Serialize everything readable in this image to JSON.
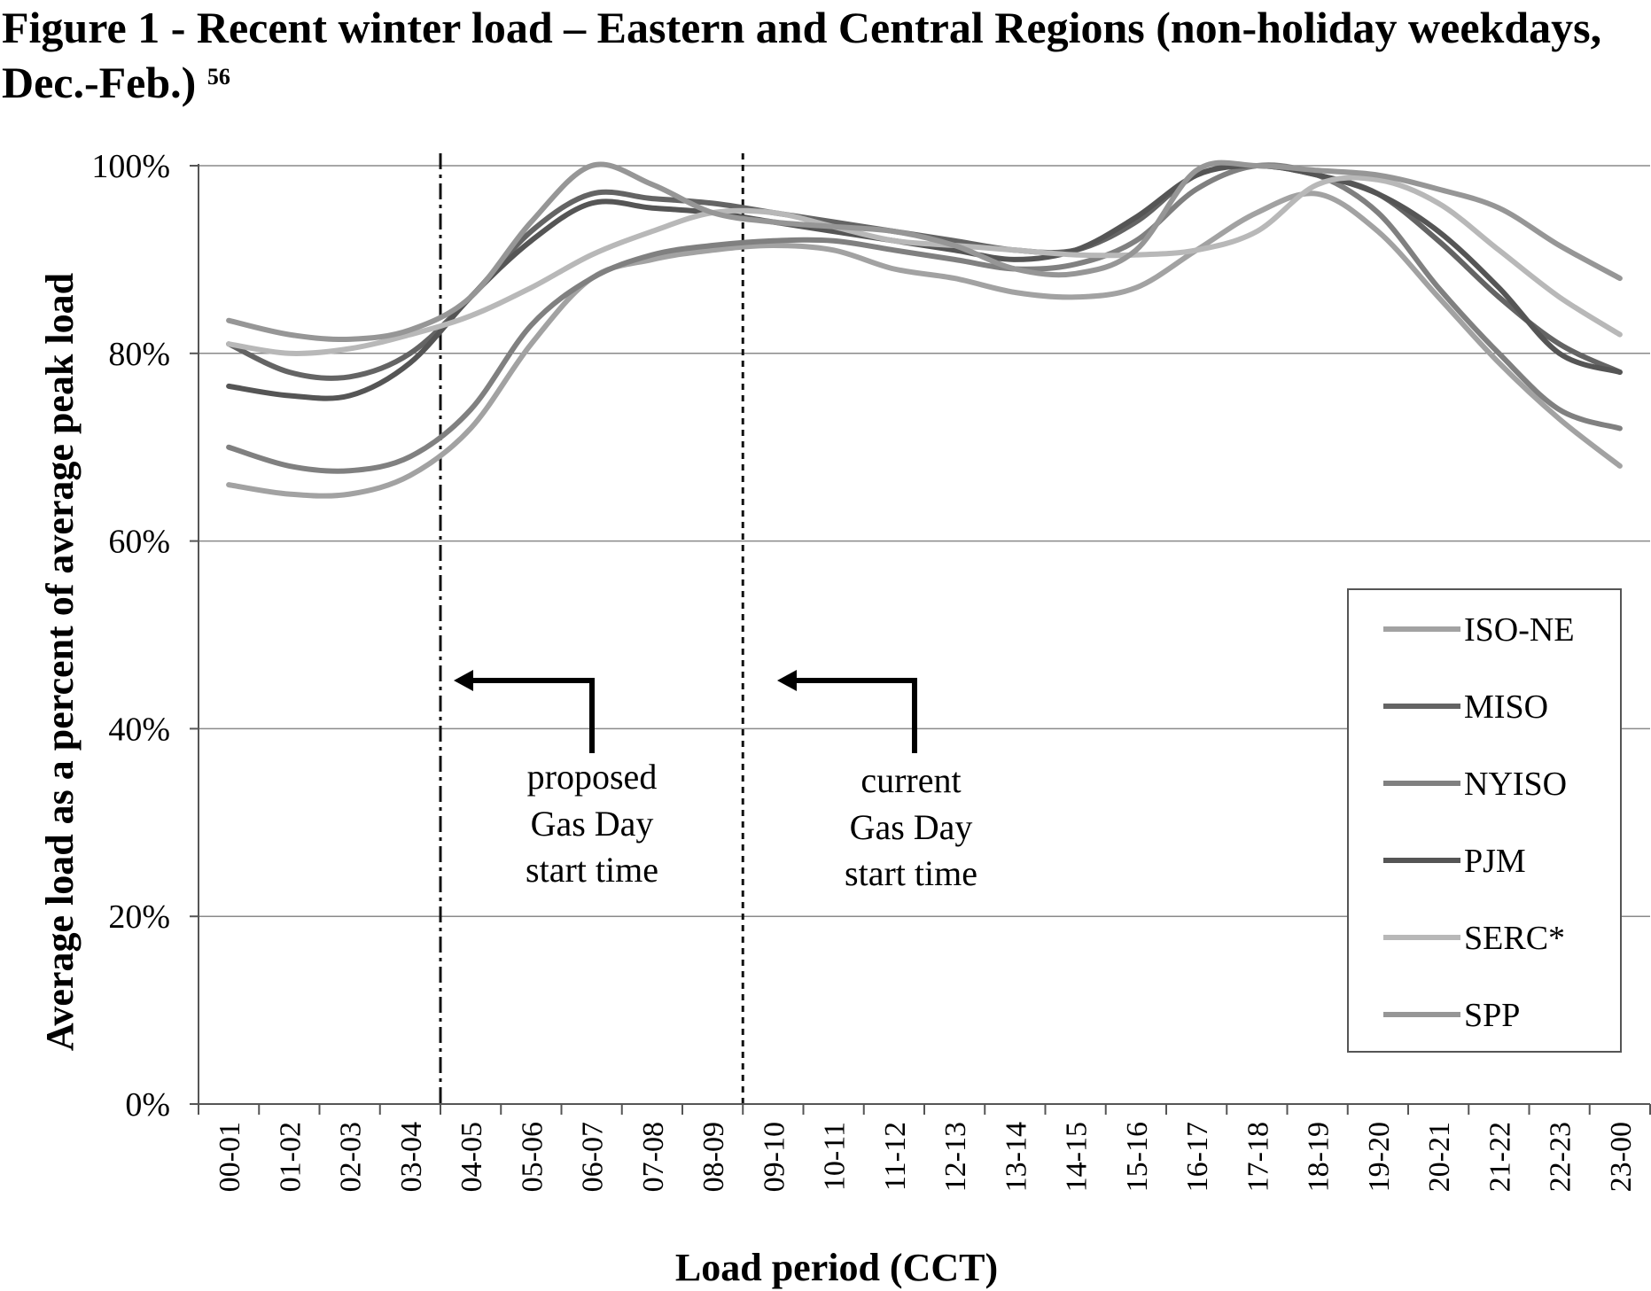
{
  "figure": {
    "title": "Figure 1 - Recent winter load – Eastern and Central Regions (non-holiday weekdays, Dec.-Feb.)",
    "footnote": "56"
  },
  "chart_data": {
    "type": "line",
    "title": "Figure 1 - Recent winter load – Eastern and Central Regions (non-holiday weekdays, Dec.-Feb.)",
    "xlabel": "Load period (CCT)",
    "ylabel": "Average load as a percent of average peak load",
    "ylim": [
      0,
      100
    ],
    "yticks": [
      "0%",
      "20%",
      "40%",
      "60%",
      "80%",
      "100%"
    ],
    "grid": true,
    "legend_position": "right",
    "categories": [
      "00-01",
      "01-02",
      "02-03",
      "03-04",
      "04-05",
      "05-06",
      "06-07",
      "07-08",
      "08-09",
      "09-10",
      "10-11",
      "11-12",
      "12-13",
      "13-14",
      "14-15",
      "15-16",
      "16-17",
      "17-18",
      "18-19",
      "19-20",
      "20-21",
      "21-22",
      "22-23",
      "23-00"
    ],
    "series": [
      {
        "name": "ISO-NE",
        "color": "#a2a2a2",
        "values": [
          66,
          65,
          65,
          67,
          72,
          81,
          88,
          90,
          91,
          91.5,
          91,
          89,
          88,
          86.5,
          86,
          87,
          91,
          95,
          97,
          93,
          86,
          79,
          73,
          68
        ]
      },
      {
        "name": "MISO",
        "color": "#646464",
        "values": [
          81,
          78,
          77.5,
          80,
          86,
          93,
          97,
          96.5,
          96,
          95,
          94,
          93,
          92,
          91,
          91,
          94,
          99,
          100,
          99,
          97,
          92,
          86,
          81,
          78
        ]
      },
      {
        "name": "NYISO",
        "color": "#808080",
        "values": [
          70,
          68,
          67.5,
          69,
          74,
          83,
          88,
          90.5,
          91.5,
          92,
          92,
          91,
          90,
          89,
          89.5,
          92,
          97.5,
          100,
          99,
          95,
          87,
          80,
          74,
          72
        ]
      },
      {
        "name": "PJM",
        "color": "#555555",
        "values": [
          76.5,
          75.5,
          75.5,
          79,
          86,
          92,
          96,
          95.5,
          95,
          94,
          93,
          92,
          91,
          90,
          91,
          94.5,
          99,
          100,
          99,
          97,
          93,
          87,
          80,
          78
        ]
      },
      {
        "name": "SERC*",
        "color": "#b8b8b8",
        "values": [
          81,
          80,
          80.5,
          82,
          84,
          87,
          90.5,
          93,
          95,
          95,
          93.5,
          92,
          91.5,
          91,
          90.5,
          90.5,
          91,
          93,
          98,
          98.5,
          96,
          91,
          86,
          82
        ]
      },
      {
        "name": "SPP",
        "color": "#969696",
        "values": [
          83.5,
          82,
          81.5,
          82.5,
          86,
          94,
          100,
          98,
          95,
          94,
          93.5,
          93,
          91.5,
          89,
          88.5,
          91,
          99.5,
          100,
          99.5,
          99,
          97.5,
          95.5,
          91.5,
          88
        ]
      }
    ],
    "reference_lines": [
      {
        "name": "proposed",
        "x_position": 3.5,
        "style": "dash-dot"
      },
      {
        "name": "current",
        "x_position": 8.5,
        "style": "dotted"
      }
    ],
    "annotations": [
      {
        "name": "proposed",
        "lines": [
          "proposed",
          "Gas Day",
          "start time"
        ]
      },
      {
        "name": "current",
        "lines": [
          "current",
          "Gas Day",
          "start time"
        ]
      }
    ]
  }
}
